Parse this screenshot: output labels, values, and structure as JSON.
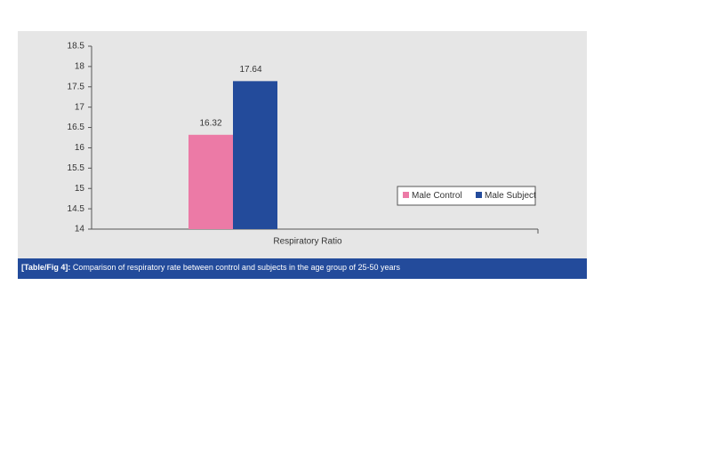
{
  "chart_data": {
    "type": "bar",
    "x_label": "Respiratory Ratio",
    "categories": [
      "Respiratory Ratio"
    ],
    "series": [
      {
        "name": "Male Control",
        "color": "#ec7aa6",
        "values": [
          16.32
        ]
      },
      {
        "name": "Male Subject",
        "color": "#234b9b",
        "values": [
          17.64
        ]
      }
    ],
    "ylim": [
      14,
      18.5
    ],
    "yticks": [
      14,
      14.5,
      15,
      15.5,
      16,
      16.5,
      17,
      17.5,
      18,
      18.5
    ],
    "legend": "right",
    "grid": false
  },
  "caption": {
    "label": "[Table/Fig 4]:",
    "text": " Comparison of respiratory rate between control and subjects in the age group of 25-50 years"
  }
}
